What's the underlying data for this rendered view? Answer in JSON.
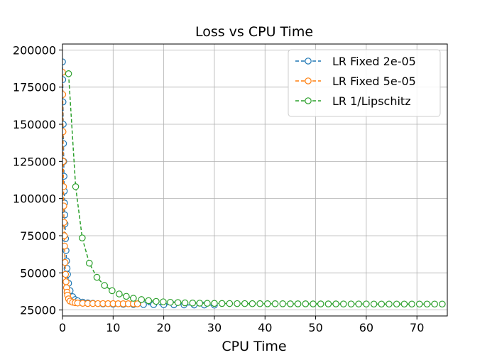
{
  "chart_data": {
    "type": "line",
    "title": "Loss vs CPU Time",
    "xlabel": "CPU Time",
    "ylabel": "",
    "xlim": [
      0,
      76
    ],
    "ylim": [
      21000,
      204000
    ],
    "xticks": [
      0,
      10,
      20,
      30,
      40,
      50,
      60,
      70
    ],
    "yticks": [
      25000,
      50000,
      75000,
      100000,
      125000,
      150000,
      175000,
      200000
    ],
    "xtick_labels": [
      "0",
      "10",
      "20",
      "30",
      "40",
      "50",
      "60",
      "70"
    ],
    "ytick_labels": [
      "25000",
      "50000",
      "75000",
      "100000",
      "125000",
      "150000",
      "175000",
      "200000"
    ],
    "grid": true,
    "legend_position": "top-right",
    "series": [
      {
        "name": "LR Fixed 2e-05",
        "color": "#1f77b4",
        "marker": "open-circle",
        "linestyle": "dashed",
        "x": [
          0,
          0.05,
          0.1,
          0.15,
          0.2,
          0.25,
          0.3,
          0.35,
          0.4,
          0.45,
          0.5,
          0.6,
          0.7,
          0.8,
          0.9,
          1.0,
          1.2,
          1.5,
          2,
          2.5,
          3,
          4,
          5,
          6,
          8,
          10,
          12,
          14,
          16,
          18,
          20,
          22,
          24,
          26,
          28,
          30
        ],
        "values": [
          192000,
          180000,
          165000,
          150000,
          137000,
          125000,
          115000,
          105000,
          97000,
          89000,
          83000,
          73000,
          65000,
          58000,
          53000,
          49000,
          43000,
          38000,
          34000,
          32000,
          31200,
          30300,
          29800,
          29500,
          29100,
          28900,
          28800,
          28700,
          28650,
          28600,
          28550,
          28500,
          28450,
          28400,
          28350,
          28300
        ]
      },
      {
        "name": "LR Fixed 5e-05",
        "color": "#ff7f0e",
        "marker": "open-circle",
        "linestyle": "dashed",
        "x": [
          0,
          0.05,
          0.1,
          0.15,
          0.2,
          0.25,
          0.3,
          0.35,
          0.4,
          0.5,
          0.6,
          0.7,
          0.8,
          0.9,
          1.0,
          1.2,
          1.5,
          2,
          2.5,
          3,
          4,
          5,
          6,
          7,
          8,
          9,
          10,
          11,
          12,
          13,
          14,
          14.8
        ],
        "values": [
          185000,
          170000,
          145000,
          125000,
          108000,
          95000,
          84000,
          75000,
          68000,
          57000,
          49000,
          44000,
          40000,
          37000,
          35000,
          32500,
          31000,
          30200,
          29900,
          29700,
          29500,
          29400,
          29350,
          29300,
          29300,
          29250,
          29250,
          29200,
          29200,
          29200,
          29200,
          29150
        ]
      },
      {
        "name": "LR 1/Lipschitz",
        "color": "#2ca02c",
        "marker": "open-circle",
        "linestyle": "dashed",
        "x": [
          1.2,
          2.6,
          3.9,
          5.3,
          6.8,
          8.3,
          9.8,
          11.2,
          12.6,
          14.0,
          15.6,
          17.0,
          18.5,
          19.9,
          21.3,
          22.8,
          24.2,
          25.7,
          27.1,
          28.6,
          30.0,
          31.5,
          33.0,
          34.5,
          36.0,
          37.5,
          39.0,
          40.5,
          42.0,
          43.5,
          45.0,
          46.5,
          48.0,
          49.5,
          51.0,
          52.5,
          54.0,
          55.5,
          57.0,
          58.5,
          60.0,
          61.5,
          63.0,
          64.5,
          66.0,
          67.5,
          69.0,
          70.5,
          72.0,
          73.5,
          75.0
        ],
        "values": [
          184000,
          108000,
          73500,
          56500,
          47000,
          41500,
          38000,
          35800,
          34200,
          32900,
          32000,
          31300,
          30800,
          30500,
          30200,
          30000,
          29800,
          29700,
          29600,
          29500,
          29450,
          29400,
          29350,
          29300,
          29300,
          29250,
          29250,
          29200,
          29200,
          29200,
          29150,
          29150,
          29150,
          29100,
          29100,
          29100,
          29100,
          29050,
          29050,
          29050,
          29050,
          29000,
          29000,
          29000,
          29000,
          29000,
          29000,
          29000,
          29000,
          29000,
          29000
        ]
      }
    ]
  }
}
